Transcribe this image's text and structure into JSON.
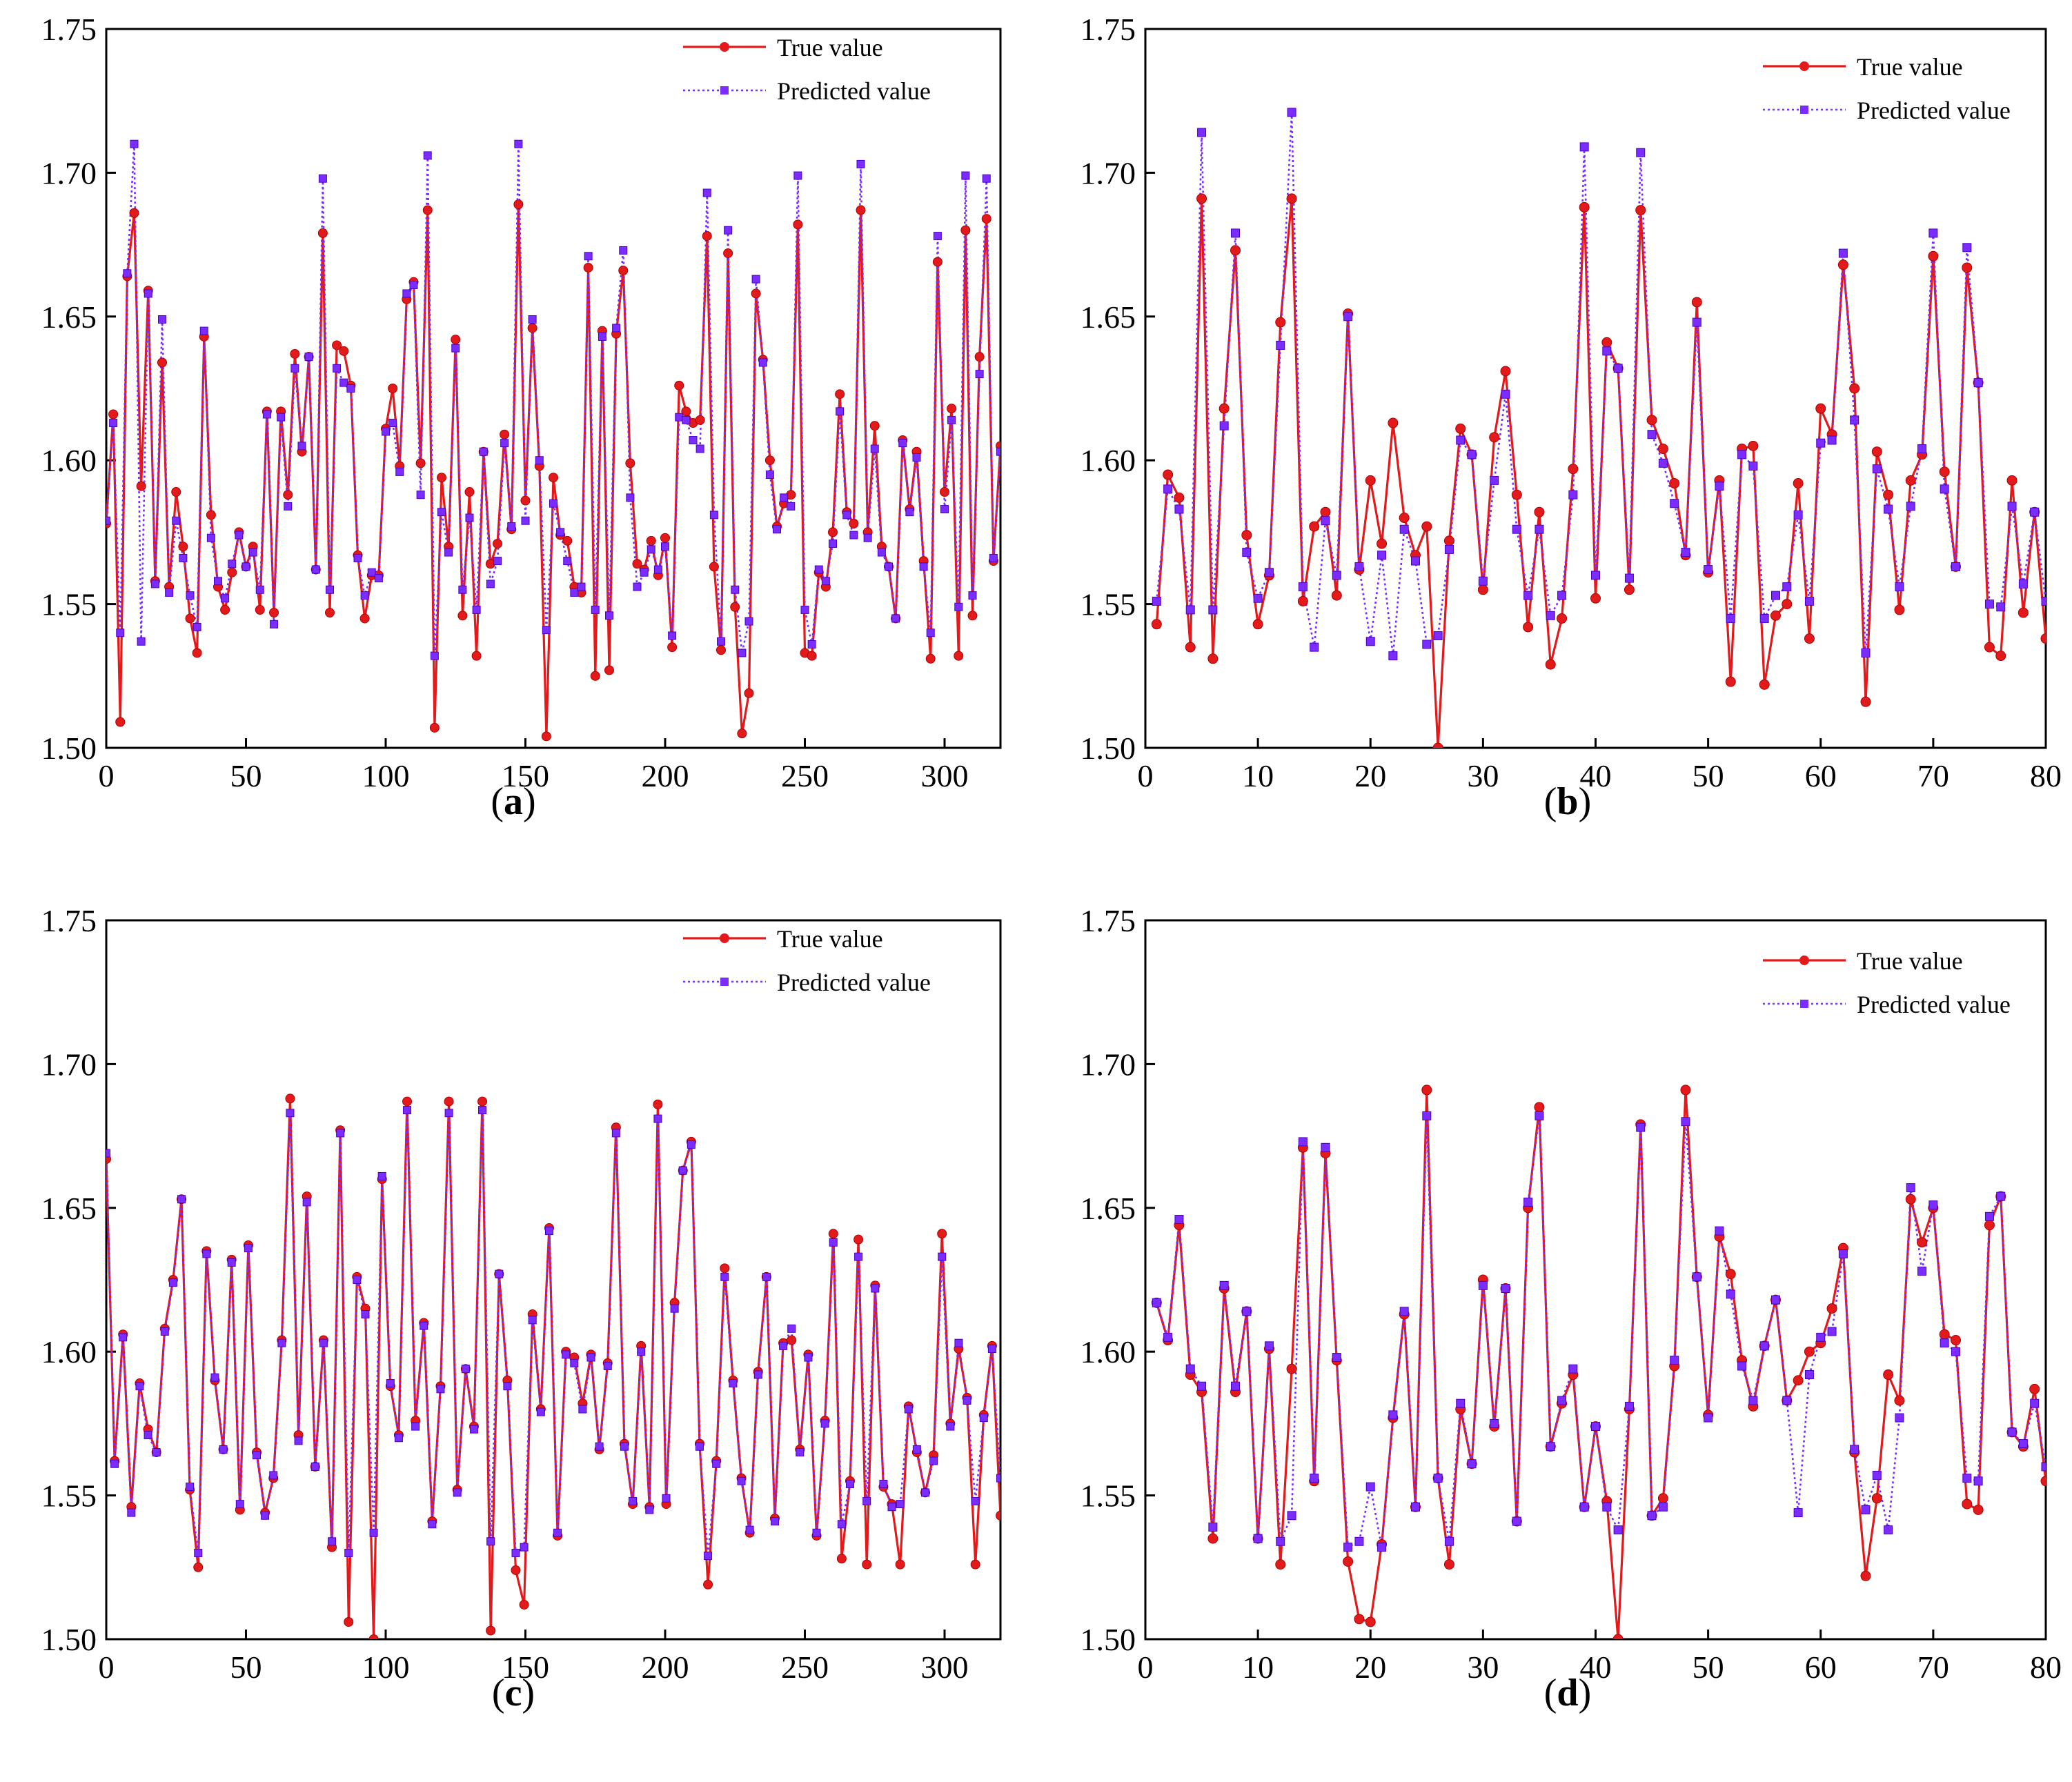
{
  "figure": {
    "colors": {
      "true": "#e31a1c",
      "pred": "#7b2cff",
      "axis": "#000000"
    }
  },
  "chart_data": [
    {
      "id": "a",
      "type": "line",
      "panel_label": "a",
      "xlim": [
        0,
        320
      ],
      "ylim": [
        1.5,
        1.75
      ],
      "xticks": [
        "0",
        "50",
        "100",
        "150",
        "200",
        "250",
        "300"
      ],
      "yticks": [
        "1.50",
        "1.55",
        "1.60",
        "1.65",
        "1.70",
        "1.75"
      ],
      "legend": {
        "true": "True value",
        "pred": "Predicted value",
        "placement": "top-right"
      },
      "series": [
        {
          "name": "True value",
          "style": "solid-circle",
          "values": [
            1.578,
            1.616,
            1.509,
            1.664,
            1.686,
            1.591,
            1.659,
            1.558,
            1.634,
            1.556,
            1.589,
            1.57,
            1.545,
            1.533,
            1.643,
            1.581,
            1.556,
            1.548,
            1.561,
            1.575,
            1.563,
            1.57,
            1.548,
            1.617,
            1.547,
            1.617,
            1.588,
            1.637,
            1.603,
            1.636,
            1.562,
            1.679,
            1.547,
            1.64,
            1.638,
            1.626,
            1.567,
            1.545,
            1.56,
            1.56,
            1.611,
            1.625,
            1.598,
            1.656,
            1.662,
            1.599,
            1.687,
            1.507,
            1.594,
            1.57,
            1.642,
            1.546,
            1.589,
            1.532,
            1.603,
            1.564,
            1.571,
            1.609,
            1.576,
            1.689,
            1.586,
            1.646,
            1.598,
            1.504,
            1.594,
            1.574,
            1.572,
            1.556,
            1.554,
            1.667,
            1.525,
            1.645,
            1.527,
            1.644,
            1.666,
            1.599,
            1.564,
            1.562,
            1.572,
            1.56,
            1.573,
            1.535,
            1.626,
            1.617,
            1.613,
            1.614,
            1.678,
            1.563,
            1.534,
            1.672,
            1.549,
            1.505,
            1.519,
            1.658,
            1.635,
            1.6,
            1.577,
            1.585,
            1.588,
            1.682,
            1.533,
            1.532,
            1.561,
            1.556,
            1.575,
            1.623,
            1.582,
            1.578,
            1.687,
            1.575,
            1.612,
            1.57,
            1.563,
            1.545,
            1.607,
            1.583,
            1.603,
            1.565,
            1.531,
            1.669,
            1.589,
            1.618,
            1.532,
            1.68,
            1.546,
            1.636,
            1.684,
            1.565,
            1.605
          ]
        },
        {
          "name": "Predicted value",
          "style": "dotted-square",
          "values": [
            1.579,
            1.613,
            1.54,
            1.665,
            1.71,
            1.537,
            1.658,
            1.557,
            1.649,
            1.554,
            1.579,
            1.566,
            1.553,
            1.542,
            1.645,
            1.573,
            1.558,
            1.552,
            1.564,
            1.574,
            1.563,
            1.568,
            1.555,
            1.616,
            1.543,
            1.615,
            1.584,
            1.632,
            1.605,
            1.636,
            1.562,
            1.698,
            1.555,
            1.632,
            1.627,
            1.625,
            1.566,
            1.553,
            1.561,
            1.559,
            1.61,
            1.613,
            1.596,
            1.658,
            1.661,
            1.588,
            1.706,
            1.532,
            1.582,
            1.568,
            1.639,
            1.555,
            1.58,
            1.548,
            1.603,
            1.557,
            1.565,
            1.606,
            1.577,
            1.71,
            1.579,
            1.649,
            1.6,
            1.541,
            1.585,
            1.575,
            1.565,
            1.554,
            1.556,
            1.671,
            1.548,
            1.643,
            1.546,
            1.646,
            1.673,
            1.587,
            1.556,
            1.561,
            1.569,
            1.562,
            1.57,
            1.539,
            1.615,
            1.614,
            1.607,
            1.604,
            1.693,
            1.581,
            1.537,
            1.68,
            1.555,
            1.533,
            1.544,
            1.663,
            1.634,
            1.595,
            1.576,
            1.587,
            1.584,
            1.699,
            1.548,
            1.536,
            1.562,
            1.558,
            1.571,
            1.617,
            1.581,
            1.574,
            1.703,
            1.573,
            1.604,
            1.568,
            1.563,
            1.545,
            1.606,
            1.582,
            1.601,
            1.563,
            1.54,
            1.678,
            1.583,
            1.614,
            1.549,
            1.699,
            1.553,
            1.63,
            1.698,
            1.566,
            1.603
          ]
        }
      ]
    },
    {
      "id": "b",
      "type": "line",
      "panel_label": "b",
      "xlim": [
        0,
        80
      ],
      "ylim": [
        1.5,
        1.75
      ],
      "xticks": [
        "0",
        "10",
        "20",
        "30",
        "40",
        "50",
        "60",
        "70",
        "80"
      ],
      "yticks": [
        "1.50",
        "1.55",
        "1.60",
        "1.65",
        "1.70",
        "1.75"
      ],
      "legend": {
        "true": "True value",
        "pred": "Predicted value",
        "placement": "top-right"
      },
      "series": [
        {
          "name": "True value",
          "style": "solid-circle",
          "values": [
            1.543,
            1.595,
            1.587,
            1.535,
            1.691,
            1.531,
            1.618,
            1.673,
            1.574,
            1.543,
            1.56,
            1.648,
            1.691,
            1.551,
            1.577,
            1.582,
            1.553,
            1.651,
            1.562,
            1.593,
            1.571,
            1.613,
            1.58,
            1.567,
            1.577,
            1.5,
            1.572,
            1.611,
            1.602,
            1.555,
            1.608,
            1.631,
            1.588,
            1.542,
            1.582,
            1.529,
            1.545,
            1.597,
            1.688,
            1.552,
            1.641,
            1.632,
            1.555,
            1.687,
            1.614,
            1.604,
            1.592,
            1.567,
            1.655,
            1.561,
            1.593,
            1.523,
            1.604,
            1.605,
            1.522,
            1.546,
            1.55,
            1.592,
            1.538,
            1.618,
            1.609,
            1.668,
            1.625,
            1.516,
            1.603,
            1.588,
            1.548,
            1.593,
            1.602,
            1.671,
            1.596,
            1.563,
            1.667,
            1.627,
            1.535,
            1.532,
            1.593,
            1.547,
            1.582,
            1.538
          ]
        },
        {
          "name": "Predicted value",
          "style": "dotted-square",
          "values": [
            1.551,
            1.59,
            1.583,
            1.548,
            1.714,
            1.548,
            1.612,
            1.679,
            1.568,
            1.552,
            1.561,
            1.64,
            1.721,
            1.556,
            1.535,
            1.579,
            1.56,
            1.65,
            1.563,
            1.537,
            1.567,
            1.532,
            1.576,
            1.565,
            1.536,
            1.539,
            1.569,
            1.607,
            1.602,
            1.558,
            1.593,
            1.623,
            1.576,
            1.553,
            1.576,
            1.546,
            1.553,
            1.588,
            1.709,
            1.56,
            1.638,
            1.632,
            1.559,
            1.707,
            1.609,
            1.599,
            1.585,
            1.568,
            1.648,
            1.562,
            1.591,
            1.545,
            1.602,
            1.598,
            1.545,
            1.553,
            1.556,
            1.581,
            1.551,
            1.606,
            1.607,
            1.672,
            1.614,
            1.533,
            1.597,
            1.583,
            1.556,
            1.584,
            1.604,
            1.679,
            1.59,
            1.563,
            1.674,
            1.627,
            1.55,
            1.549,
            1.584,
            1.557,
            1.582,
            1.551
          ]
        }
      ]
    },
    {
      "id": "c",
      "type": "line",
      "panel_label": "c",
      "xlim": [
        0,
        320
      ],
      "ylim": [
        1.5,
        1.75
      ],
      "xticks": [
        "0",
        "50",
        "100",
        "150",
        "200",
        "250",
        "300"
      ],
      "yticks": [
        "1.50",
        "1.55",
        "1.60",
        "1.65",
        "1.70",
        "1.75"
      ],
      "legend": {
        "true": "True value",
        "pred": "Predicted value",
        "placement": "top-right"
      },
      "series": [
        {
          "name": "True value",
          "style": "solid-circle",
          "values": [
            1.667,
            1.562,
            1.606,
            1.546,
            1.589,
            1.573,
            1.565,
            1.608,
            1.625,
            1.653,
            1.552,
            1.525,
            1.635,
            1.59,
            1.566,
            1.632,
            1.545,
            1.637,
            1.565,
            1.544,
            1.556,
            1.604,
            1.688,
            1.571,
            1.654,
            1.56,
            1.604,
            1.532,
            1.677,
            1.506,
            1.626,
            1.615,
            1.5,
            1.66,
            1.588,
            1.571,
            1.687,
            1.576,
            1.61,
            1.541,
            1.588,
            1.687,
            1.552,
            1.594,
            1.574,
            1.687,
            1.503,
            1.627,
            1.59,
            1.524,
            1.512,
            1.613,
            1.58,
            1.643,
            1.536,
            1.6,
            1.598,
            1.582,
            1.599,
            1.566,
            1.596,
            1.678,
            1.568,
            1.547,
            1.602,
            1.546,
            1.686,
            1.547,
            1.617,
            1.663,
            1.673,
            1.568,
            1.519,
            1.562,
            1.629,
            1.59,
            1.556,
            1.537,
            1.593,
            1.626,
            1.542,
            1.603,
            1.604,
            1.566,
            1.599,
            1.536,
            1.576,
            1.641,
            1.528,
            1.555,
            1.639,
            1.526,
            1.623,
            1.553,
            1.547,
            1.526,
            1.581,
            1.565,
            1.551,
            1.564,
            1.641,
            1.575,
            1.601,
            1.584,
            1.526,
            1.578,
            1.602,
            1.543
          ]
        },
        {
          "name": "Predicted value",
          "style": "dotted-square",
          "values": [
            1.669,
            1.561,
            1.605,
            1.544,
            1.588,
            1.571,
            1.565,
            1.607,
            1.624,
            1.653,
            1.553,
            1.53,
            1.634,
            1.591,
            1.566,
            1.631,
            1.547,
            1.636,
            1.564,
            1.543,
            1.557,
            1.603,
            1.683,
            1.569,
            1.652,
            1.56,
            1.603,
            1.534,
            1.676,
            1.53,
            1.625,
            1.613,
            1.537,
            1.661,
            1.589,
            1.57,
            1.684,
            1.574,
            1.609,
            1.54,
            1.587,
            1.683,
            1.551,
            1.594,
            1.573,
            1.684,
            1.534,
            1.627,
            1.588,
            1.53,
            1.532,
            1.611,
            1.579,
            1.642,
            1.537,
            1.599,
            1.596,
            1.58,
            1.598,
            1.567,
            1.595,
            1.676,
            1.567,
            1.548,
            1.6,
            1.545,
            1.681,
            1.549,
            1.615,
            1.663,
            1.672,
            1.567,
            1.529,
            1.561,
            1.626,
            1.589,
            1.555,
            1.538,
            1.592,
            1.626,
            1.541,
            1.602,
            1.608,
            1.565,
            1.598,
            1.537,
            1.575,
            1.638,
            1.54,
            1.554,
            1.633,
            1.548,
            1.622,
            1.554,
            1.546,
            1.547,
            1.58,
            1.566,
            1.551,
            1.562,
            1.633,
            1.574,
            1.603,
            1.583,
            1.548,
            1.577,
            1.601,
            1.556
          ]
        }
      ]
    },
    {
      "id": "d",
      "type": "line",
      "panel_label": "d",
      "xlim": [
        0,
        80
      ],
      "ylim": [
        1.5,
        1.75
      ],
      "xticks": [
        "0",
        "10",
        "20",
        "30",
        "40",
        "50",
        "60",
        "70",
        "80"
      ],
      "yticks": [
        "1.50",
        "1.55",
        "1.60",
        "1.65",
        "1.70",
        "1.75"
      ],
      "legend": {
        "true": "True value",
        "pred": "Predicted value",
        "placement": "top-right"
      },
      "series": [
        {
          "name": "True value",
          "style": "solid-circle",
          "values": [
            1.617,
            1.604,
            1.644,
            1.592,
            1.586,
            1.535,
            1.622,
            1.586,
            1.614,
            1.535,
            1.601,
            1.526,
            1.594,
            1.671,
            1.555,
            1.669,
            1.597,
            1.527,
            1.507,
            1.506,
            1.533,
            1.577,
            1.613,
            1.546,
            1.691,
            1.556,
            1.526,
            1.58,
            1.561,
            1.625,
            1.574,
            1.622,
            1.541,
            1.65,
            1.685,
            1.567,
            1.582,
            1.592,
            1.546,
            1.574,
            1.548,
            1.5,
            1.58,
            1.679,
            1.543,
            1.549,
            1.595,
            1.691,
            1.626,
            1.578,
            1.64,
            1.627,
            1.597,
            1.581,
            1.602,
            1.618,
            1.583,
            1.59,
            1.6,
            1.603,
            1.615,
            1.636,
            1.565,
            1.522,
            1.549,
            1.592,
            1.583,
            1.653,
            1.638,
            1.65,
            1.606,
            1.604,
            1.547,
            1.545,
            1.644,
            1.654,
            1.572,
            1.567,
            1.587,
            1.555
          ]
        },
        {
          "name": "Predicted value",
          "style": "dotted-square",
          "values": [
            1.617,
            1.605,
            1.646,
            1.594,
            1.588,
            1.539,
            1.623,
            1.588,
            1.614,
            1.535,
            1.602,
            1.534,
            1.543,
            1.673,
            1.556,
            1.671,
            1.598,
            1.532,
            1.534,
            1.553,
            1.532,
            1.578,
            1.614,
            1.546,
            1.682,
            1.556,
            1.534,
            1.582,
            1.561,
            1.623,
            1.575,
            1.622,
            1.541,
            1.652,
            1.682,
            1.567,
            1.583,
            1.594,
            1.546,
            1.574,
            1.546,
            1.538,
            1.581,
            1.678,
            1.543,
            1.546,
            1.597,
            1.68,
            1.626,
            1.577,
            1.642,
            1.62,
            1.595,
            1.583,
            1.602,
            1.618,
            1.583,
            1.544,
            1.592,
            1.605,
            1.607,
            1.634,
            1.566,
            1.545,
            1.557,
            1.538,
            1.577,
            1.657,
            1.628,
            1.651,
            1.603,
            1.6,
            1.556,
            1.555,
            1.647,
            1.654,
            1.572,
            1.568,
            1.582,
            1.56
          ]
        }
      ]
    }
  ]
}
